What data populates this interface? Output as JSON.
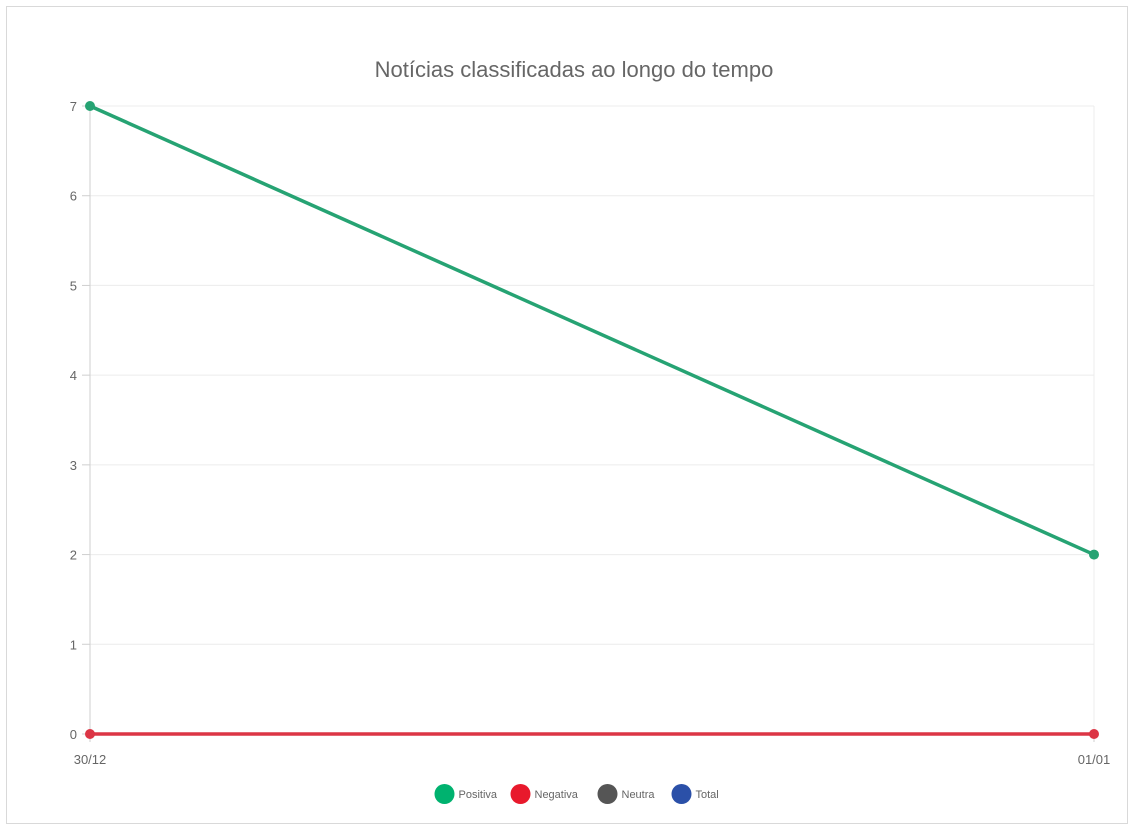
{
  "chart_data": {
    "type": "line",
    "title": "Notícias classificadas ao longo do tempo",
    "xlabel": "",
    "ylabel": "",
    "categories": [
      "30/12",
      "01/01"
    ],
    "ylim": [
      0,
      7
    ],
    "yticks": [
      0,
      1,
      2,
      3,
      4,
      5,
      6,
      7
    ],
    "grid": true,
    "legend_position": "bottom",
    "series": [
      {
        "name": "Positiva",
        "values": [
          7,
          2
        ],
        "color": "#26a373",
        "legend_color": "#00b26f"
      },
      {
        "name": "Negativa",
        "values": [
          0,
          0
        ],
        "color": "#dc3545",
        "legend_color": "#e8192c"
      },
      {
        "name": "Neutra",
        "values": [
          null,
          null
        ],
        "color": "#555555",
        "legend_color": "#555555"
      },
      {
        "name": "Total",
        "values": [
          null,
          null
        ],
        "color": "#2b50a8",
        "legend_color": "#2b50a8"
      }
    ]
  }
}
